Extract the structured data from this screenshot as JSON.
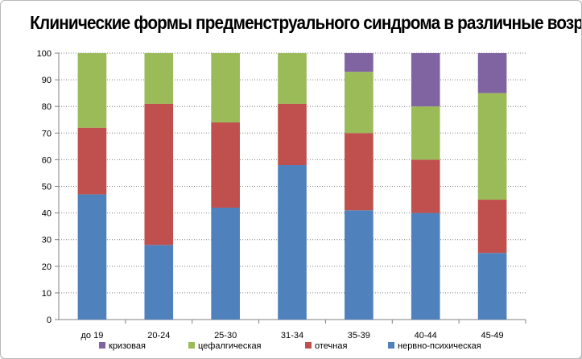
{
  "chart_data": {
    "type": "bar",
    "stacked": true,
    "title": "Клинические формы предменструального синдрома в различные возрастные периоды",
    "categories": [
      "до 19",
      "20-24",
      "25-30",
      "31-34",
      "35-39",
      "40-44",
      "45-49"
    ],
    "series": [
      {
        "name": "нервно-психическая",
        "color": "#4f81bd",
        "values": [
          47,
          28,
          42,
          58,
          41,
          40,
          25
        ]
      },
      {
        "name": "отечная",
        "color": "#c0504d",
        "values": [
          25,
          53,
          32,
          23,
          29,
          20,
          20
        ]
      },
      {
        "name": "цефалгическая",
        "color": "#9bbb59",
        "values": [
          28,
          19,
          26,
          19,
          23,
          20,
          40
        ]
      },
      {
        "name": "кризовая",
        "color": "#8064a2",
        "values": [
          0,
          0,
          0,
          0,
          7,
          20,
          15
        ]
      }
    ],
    "legend_order": [
      "кризовая",
      "цефалгическая",
      "отечная",
      "нервно-психическая"
    ],
    "ylim": [
      0,
      100
    ],
    "yticks": [
      0,
      10,
      20,
      30,
      40,
      50,
      60,
      70,
      80,
      90,
      100
    ],
    "grid": true,
    "legend_position": "bottom"
  }
}
